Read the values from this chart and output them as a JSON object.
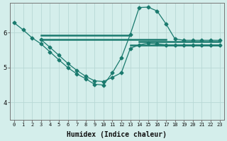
{
  "xlabel": "Humidex (Indice chaleur)",
  "bg_color": "#d4eeeb",
  "line_color": "#1a7a6e",
  "grid_color": "#b8d8d5",
  "xlim": [
    -0.5,
    23.5
  ],
  "ylim": [
    3.85,
    6.85
  ],
  "yticks": [
    4,
    5,
    6
  ],
  "xticks": [
    0,
    1,
    2,
    3,
    4,
    5,
    6,
    7,
    8,
    9,
    10,
    11,
    12,
    13,
    14,
    15,
    16,
    17,
    18,
    19,
    20,
    21,
    22,
    23
  ],
  "line1_x": [
    0,
    1,
    2,
    3,
    4,
    5,
    6,
    7,
    8,
    9,
    10,
    11,
    12,
    13,
    14,
    15,
    16,
    17,
    18,
    19,
    20,
    21,
    22,
    23
  ],
  "line1_y": [
    6.28,
    6.08,
    5.85,
    5.68,
    5.45,
    5.22,
    5.0,
    4.82,
    4.68,
    4.52,
    4.5,
    4.85,
    5.28,
    5.95,
    6.72,
    6.73,
    6.62,
    6.25,
    5.82,
    5.78,
    5.78,
    5.78,
    5.78,
    5.78
  ],
  "line2_x": [
    3,
    4,
    5,
    6,
    7,
    8,
    9,
    10,
    11,
    12,
    13,
    14,
    15,
    16,
    17,
    18,
    19,
    20,
    21,
    22,
    23
  ],
  "line2_y": [
    5.8,
    5.58,
    5.35,
    5.12,
    4.92,
    4.75,
    4.62,
    4.6,
    4.72,
    4.85,
    5.55,
    5.65,
    5.7,
    5.68,
    5.65,
    5.65,
    5.65,
    5.65,
    5.65,
    5.65,
    5.65
  ],
  "hline1_x": [
    3,
    13
  ],
  "hline1_y": [
    5.93,
    5.93
  ],
  "hline2_x": [
    3,
    17
  ],
  "hline2_y": [
    5.8,
    5.8
  ],
  "hline3_x": [
    13,
    23
  ],
  "hline3_y": [
    5.65,
    5.65
  ],
  "hline4_x": [
    14,
    23
  ],
  "hline4_y": [
    5.75,
    5.75
  ],
  "marker": "D",
  "markersize": 2.5,
  "linewidth": 0.9
}
